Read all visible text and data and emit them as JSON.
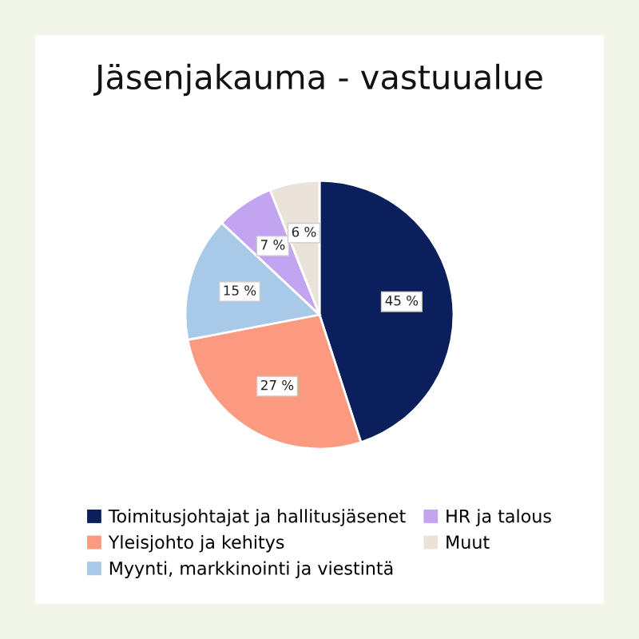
{
  "chart_data": {
    "type": "pie",
    "title": "Jäsenjakauma - vastuualue",
    "categories": [
      "Toimitusjohtajat ja hallitusjäsenet",
      "Yleisjohto ja kehitys",
      "Myynti, markkinointi ja viestintä",
      "HR ja talous",
      "Muut"
    ],
    "values": [
      45,
      27,
      15,
      7,
      6
    ],
    "colors": [
      "#0b1f5c",
      "#fb9a80",
      "#a9c9e8",
      "#c3a4f0",
      "#e9e3d9"
    ],
    "value_labels": [
      "45 %",
      "27 %",
      "15 %",
      "7 %",
      "6 %"
    ],
    "legend": "bottom"
  }
}
